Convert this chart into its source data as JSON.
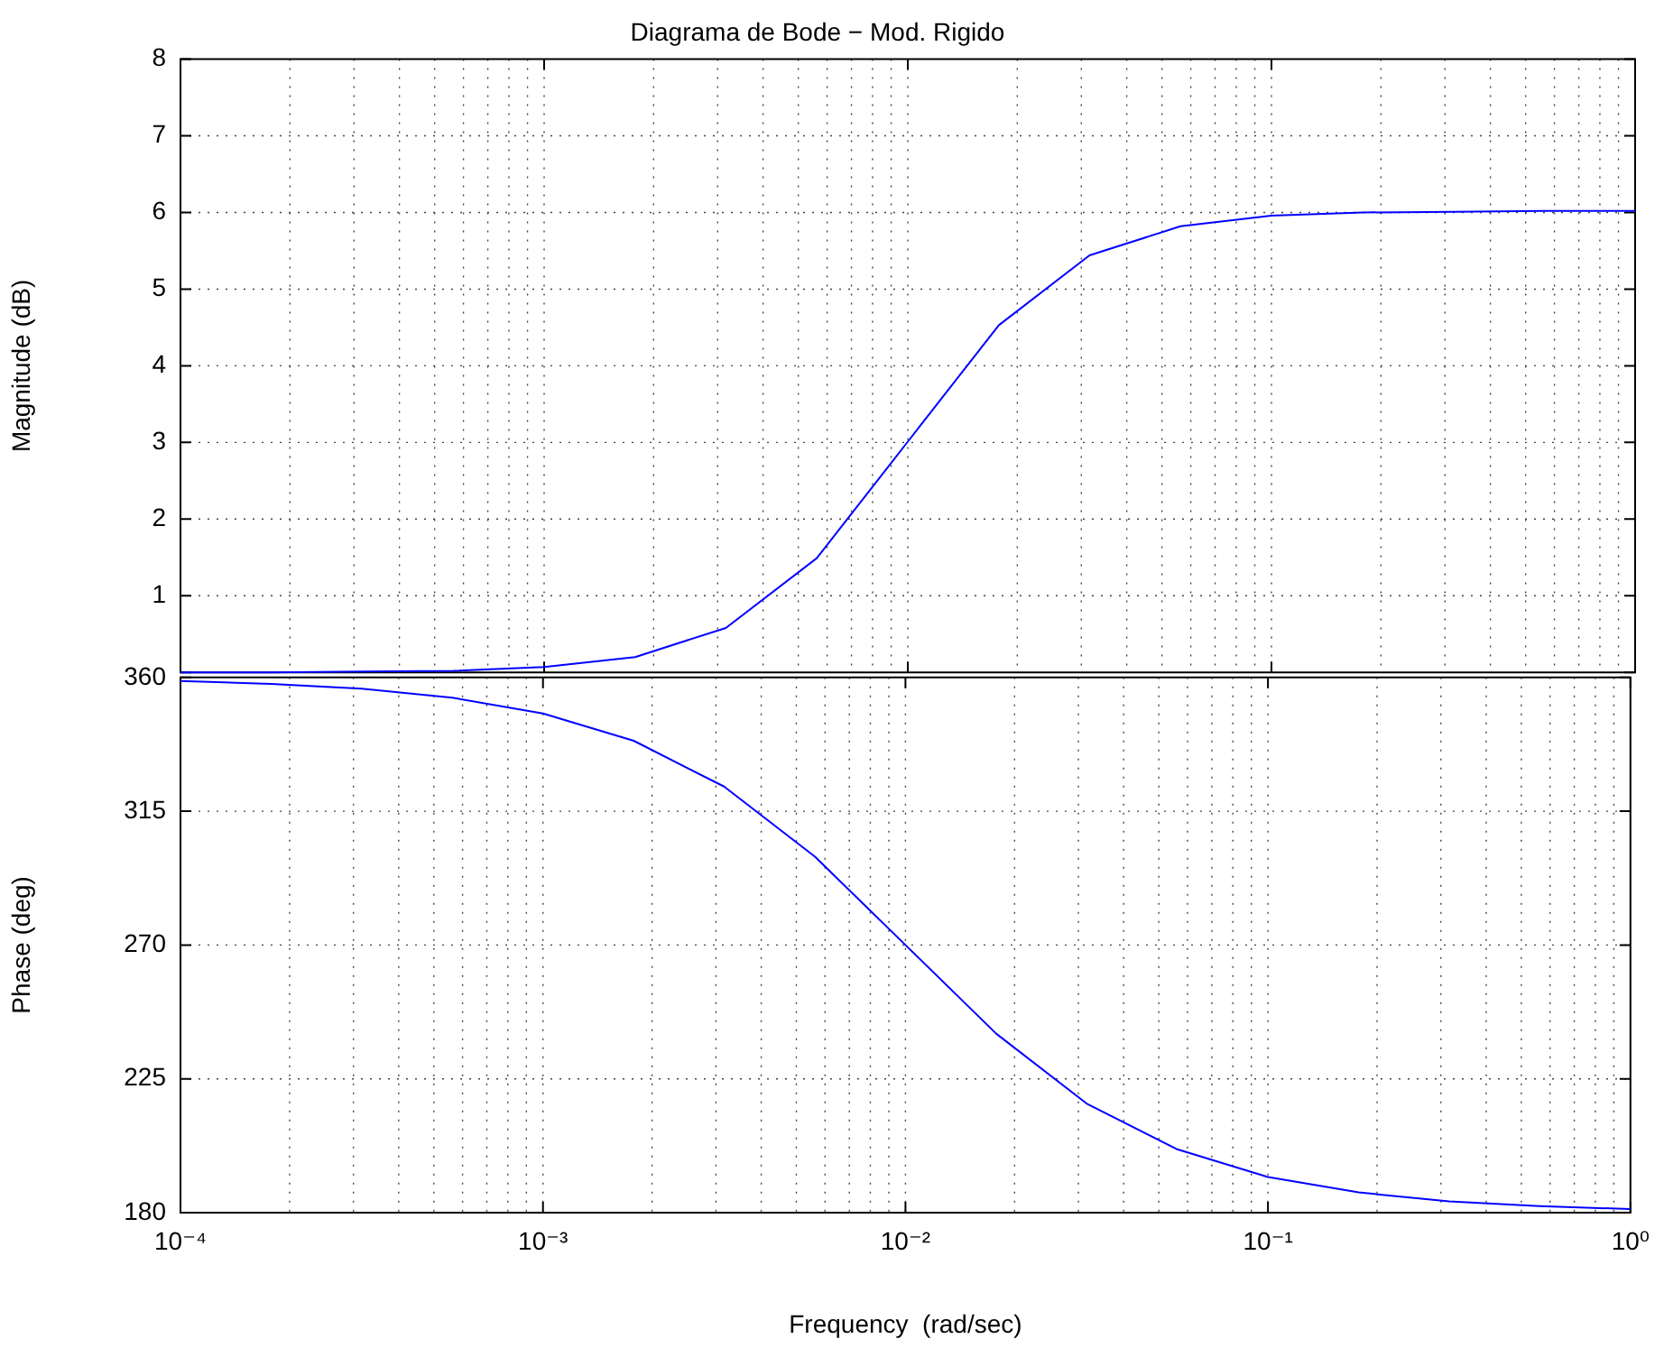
{
  "chart_data": [
    {
      "type": "line",
      "title": "Diagrama de Bode − Mod. Rigido",
      "ylabel": "Magnitude (dB)",
      "x": [
        0.0001,
        0.000178,
        0.000316,
        0.000562,
        0.001,
        0.00178,
        0.00316,
        0.00562,
        0.01,
        0.0178,
        0.0316,
        0.0562,
        0.1,
        0.178,
        0.316,
        0.562,
        1
      ],
      "series": [
        {
          "color": "#0000ff",
          "values": [
            0,
            0,
            0.01,
            0.02,
            0.07,
            0.2,
            0.58,
            1.49,
            3.01,
            4.53,
            5.44,
            5.82,
            5.96,
            6,
            6.01,
            6.02,
            6.02
          ]
        }
      ],
      "xlim": [
        0.0001,
        1
      ],
      "xticks": [
        {
          "value": 0.0001,
          "label": null
        },
        {
          "value": 0.001,
          "label": null
        },
        {
          "value": 0.01,
          "label": null
        },
        {
          "value": 0.1,
          "label": null
        },
        {
          "value": 1,
          "label": null
        }
      ],
      "ylim": [
        0,
        8
      ],
      "yticks": [
        {
          "value": 0,
          "label": null
        },
        1,
        2,
        3,
        4,
        5,
        6,
        7,
        8
      ],
      "log": "x",
      "grid": true,
      "tick_labels": "y"
    },
    {
      "type": "line",
      "xlabel": "Frequency  (rad/sec)",
      "ylabel": "Phase (deg)",
      "x": [
        0.0001,
        0.000178,
        0.000316,
        0.000562,
        0.001,
        0.00178,
        0.00316,
        0.00562,
        0.01,
        0.0178,
        0.0316,
        0.0562,
        0.1,
        0.178,
        0.316,
        0.562,
        1
      ],
      "series": [
        {
          "color": "#0000ff",
          "values": [
            358.8,
            357.8,
            356.2,
            353.2,
            347.9,
            338.7,
            323.3,
            299.8,
            270,
            240.2,
            216.7,
            201.3,
            192,
            186.8,
            183.8,
            182.2,
            181.2
          ]
        }
      ],
      "xlim": [
        0.0001,
        1
      ],
      "xticks": [
        {
          "value": 0.0001,
          "label": "10⁻⁴"
        },
        {
          "value": 0.001,
          "label": "10⁻³"
        },
        {
          "value": 0.01,
          "label": "10⁻²"
        },
        {
          "value": 0.1,
          "label": "10⁻¹"
        },
        {
          "value": 1,
          "label": "10⁰"
        }
      ],
      "ylim": [
        180,
        360
      ],
      "yticks": [
        180,
        225,
        270,
        315,
        360
      ],
      "log": "x",
      "grid": true
    }
  ]
}
